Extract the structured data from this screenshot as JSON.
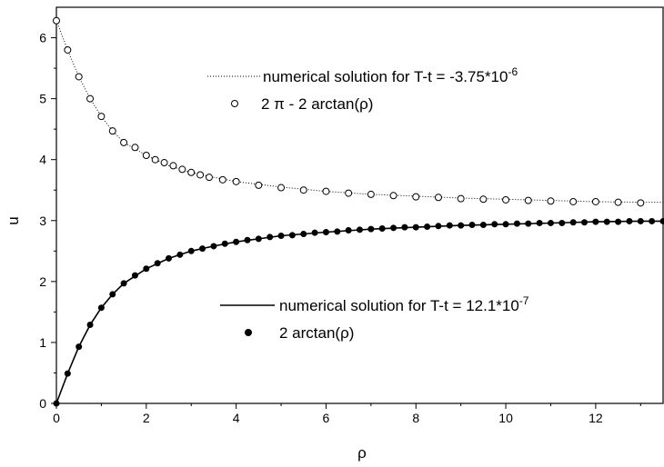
{
  "chart_data": {
    "type": "scatter",
    "xlabel": "ρ",
    "ylabel": "u",
    "xlim": [
      0,
      13.5
    ],
    "ylim": [
      0,
      6.5
    ],
    "xticks": [
      "0",
      "2",
      "4",
      "6",
      "8",
      "10",
      "12"
    ],
    "yticks": [
      "0",
      "1",
      "2",
      "3",
      "4",
      "5",
      "6"
    ],
    "grid": false,
    "series": [
      {
        "name": "numerical solution for T-t = -3.75*10",
        "name_exponent": "-6",
        "style": "dotted-line",
        "x": [
          0,
          0.25,
          0.5,
          0.75,
          1,
          1.25,
          1.5,
          2,
          2.5,
          3,
          3.5,
          4,
          5,
          6,
          7,
          8,
          9,
          10,
          11,
          12,
          13,
          13.5
        ],
        "y": [
          6.28,
          5.8,
          5.36,
          5.0,
          4.71,
          4.47,
          4.28,
          4.07,
          3.9,
          3.79,
          3.71,
          3.64,
          3.55,
          3.48,
          3.43,
          3.4,
          3.37,
          3.35,
          3.33,
          3.31,
          3.3,
          3.3
        ]
      },
      {
        "name": "2 π - 2 arctan(ρ)",
        "style": "open-circle",
        "x": [
          0,
          0.25,
          0.5,
          0.75,
          1,
          1.25,
          1.5,
          1.75,
          2,
          2.2,
          2.4,
          2.6,
          2.8,
          3,
          3.2,
          3.4,
          3.7,
          4,
          4.5,
          5,
          5.5,
          6,
          6.5,
          7,
          7.5,
          8,
          8.5,
          9,
          9.5,
          10,
          10.5,
          11,
          11.5,
          12,
          12.5,
          13
        ],
        "y": [
          6.28,
          5.8,
          5.36,
          5.0,
          4.71,
          4.47,
          4.28,
          4.2,
          4.07,
          4.0,
          3.95,
          3.9,
          3.84,
          3.79,
          3.75,
          3.71,
          3.67,
          3.64,
          3.58,
          3.54,
          3.5,
          3.48,
          3.45,
          3.43,
          3.41,
          3.39,
          3.38,
          3.36,
          3.35,
          3.34,
          3.33,
          3.32,
          3.31,
          3.31,
          3.3,
          3.29
        ]
      },
      {
        "name": "numerical solution for T-t = 12.1*10",
        "name_exponent": "-7",
        "style": "solid-line",
        "x": [
          0,
          0.25,
          0.5,
          0.75,
          1,
          1.25,
          1.5,
          2,
          2.5,
          3,
          3.5,
          4,
          5,
          6,
          7,
          8,
          9,
          10,
          11,
          12,
          13,
          13.5
        ],
        "y": [
          0,
          0.49,
          0.93,
          1.29,
          1.57,
          1.79,
          1.97,
          2.21,
          2.38,
          2.5,
          2.58,
          2.65,
          2.75,
          2.81,
          2.86,
          2.89,
          2.92,
          2.94,
          2.96,
          2.98,
          2.99,
          2.99
        ]
      },
      {
        "name": "2 arctan(ρ)",
        "style": "filled-circle",
        "x": [
          0,
          0.25,
          0.5,
          0.75,
          1,
          1.25,
          1.5,
          1.75,
          2,
          2.25,
          2.5,
          2.75,
          3,
          3.25,
          3.5,
          3.75,
          4,
          4.25,
          4.5,
          4.75,
          5,
          5.25,
          5.5,
          5.75,
          6,
          6.25,
          6.5,
          6.75,
          7,
          7.25,
          7.5,
          7.75,
          8,
          8.25,
          8.5,
          8.75,
          9,
          9.25,
          9.5,
          9.75,
          10,
          10.25,
          10.5,
          10.75,
          11,
          11.25,
          11.5,
          11.75,
          12,
          12.25,
          12.5,
          12.75,
          13,
          13.25,
          13.5
        ],
        "y": [
          0,
          0.49,
          0.93,
          1.29,
          1.57,
          1.79,
          1.97,
          2.1,
          2.21,
          2.3,
          2.38,
          2.44,
          2.5,
          2.54,
          2.58,
          2.62,
          2.65,
          2.68,
          2.7,
          2.73,
          2.75,
          2.76,
          2.78,
          2.8,
          2.81,
          2.82,
          2.84,
          2.85,
          2.86,
          2.87,
          2.88,
          2.89,
          2.89,
          2.9,
          2.91,
          2.92,
          2.92,
          2.93,
          2.93,
          2.94,
          2.94,
          2.95,
          2.95,
          2.96,
          2.96,
          2.96,
          2.97,
          2.97,
          2.98,
          2.98,
          2.98,
          2.99,
          2.99,
          2.99,
          2.99
        ]
      }
    ]
  }
}
